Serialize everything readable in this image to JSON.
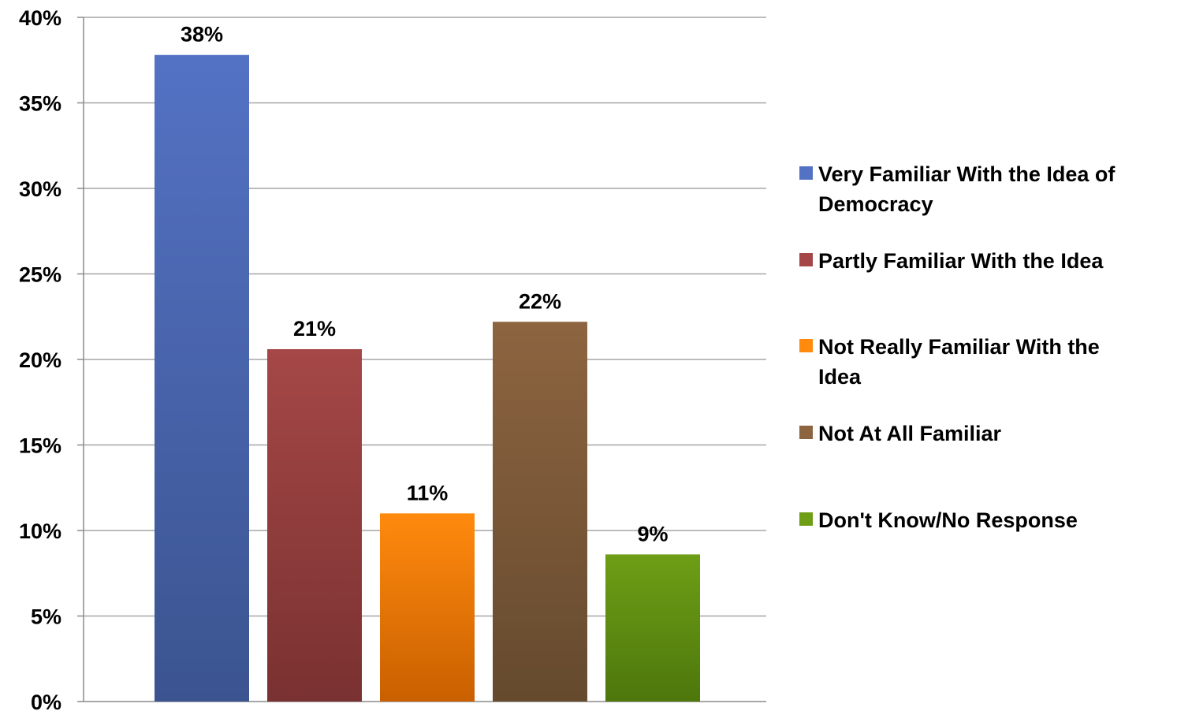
{
  "chart_data": {
    "type": "bar",
    "series": [
      {
        "name": "Very Familiar With the Idea of Democracy",
        "legend_lines": [
          "Very Familiar With the Idea of",
          "Democracy"
        ],
        "value": 38,
        "value_label": "38%",
        "plot_value": 37.8,
        "color_top": "#5472C4",
        "color_bottom": "#3B5490"
      },
      {
        "name": "Partly Familiar With the Idea",
        "legend_lines": [
          "Partly Familiar With the Idea"
        ],
        "value": 21,
        "value_label": "21%",
        "plot_value": 20.6,
        "color_top": "#A54747",
        "color_bottom": "#7A3131"
      },
      {
        "name": "Not Really Familiar With the Idea",
        "legend_lines": [
          "Not Really Familiar With the",
          "Idea"
        ],
        "value": 11,
        "value_label": "11%",
        "plot_value": 11.0,
        "color_top": "#FF8A0E",
        "color_bottom": "#C96000"
      },
      {
        "name": "Not At All Familiar",
        "legend_lines": [
          "Not At All Familiar"
        ],
        "value": 22,
        "value_label": "22%",
        "plot_value": 22.2,
        "color_top": "#8D6440",
        "color_bottom": "#654A2E"
      },
      {
        "name": "Don't Know/No Response",
        "legend_lines": [
          "Don't Know/No Response"
        ],
        "value": 9,
        "value_label": "9%",
        "plot_value": 8.6,
        "color_top": "#6E9E16",
        "color_bottom": "#4D770C"
      }
    ],
    "ylim": [
      0,
      40
    ],
    "yticks": [
      0,
      5,
      10,
      15,
      20,
      25,
      30,
      35,
      40
    ],
    "ytick_labels": [
      "0%",
      "5%",
      "10%",
      "15%",
      "20%",
      "25%",
      "30%",
      "35%",
      "40%"
    ],
    "grid": true,
    "legend_position": "right",
    "gridline_color": "#A6A6A6"
  }
}
